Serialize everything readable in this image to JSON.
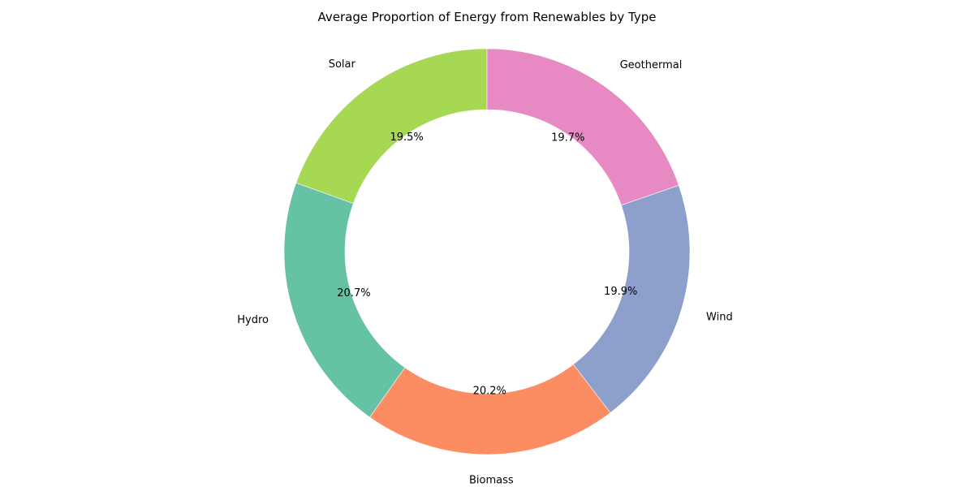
{
  "chart_data": {
    "type": "pie",
    "title": "Average Proportion of Energy from Renewables by Type",
    "donut": true,
    "start_angle_deg": 90,
    "direction": "counterclockwise",
    "categories": [
      "Solar",
      "Hydro",
      "Biomass",
      "Wind",
      "Geothermal"
    ],
    "values": [
      19.5,
      20.7,
      20.2,
      19.9,
      19.7
    ],
    "value_labels": [
      "19.5%",
      "20.7%",
      "20.2%",
      "19.9%",
      "19.7%"
    ],
    "colors": [
      "#a6d854",
      "#66c2a5",
      "#fc8d62",
      "#8da0cb",
      "#e78ac3"
    ],
    "legend": "none"
  }
}
